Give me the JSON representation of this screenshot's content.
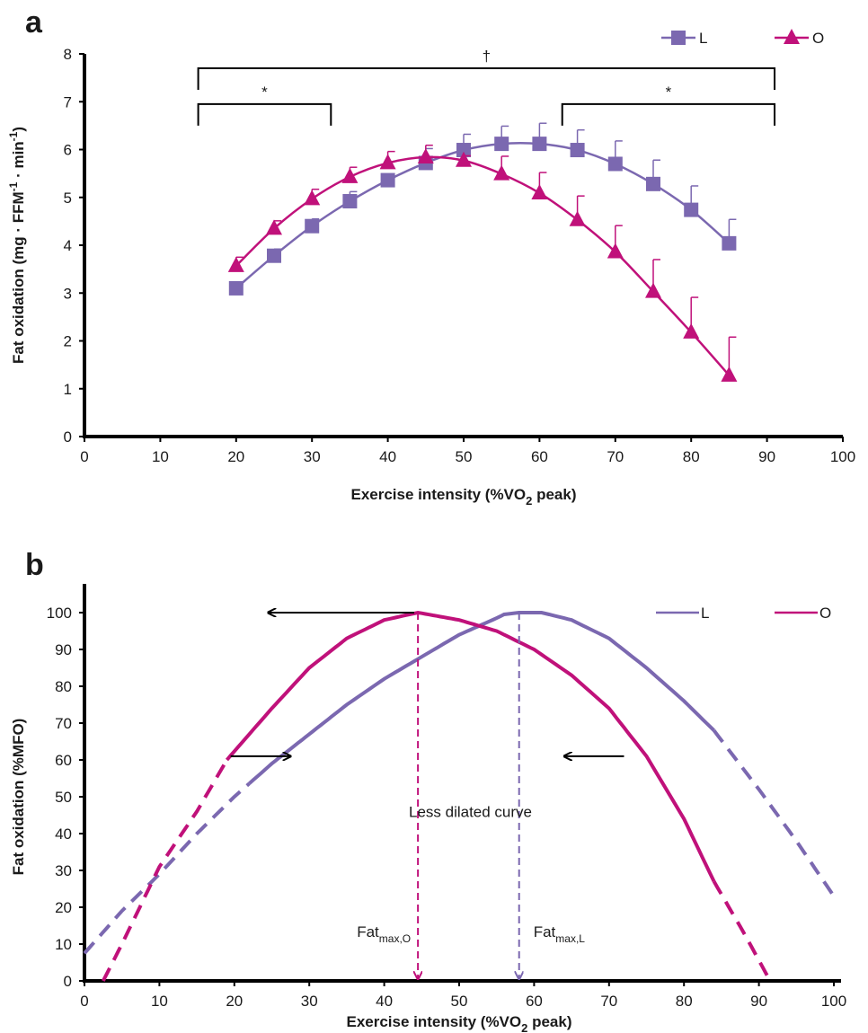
{
  "colors": {
    "L": "#7b68b0",
    "O": "#c0117a",
    "axis": "#000000"
  },
  "chart_data": [
    {
      "panel": "a",
      "type": "line",
      "xlabel": "Exercise intensity (%VO2 peak)",
      "xlabel_parts": {
        "before": "Exercise intensity (%VO",
        "sub": "2",
        "after": " peak)"
      },
      "ylabel_parts": [
        "Fat oxidation (mg · FFM",
        "-1",
        " · min",
        "-1",
        ")"
      ],
      "xlim": [
        0,
        100
      ],
      "ylim": [
        0,
        8
      ],
      "xticks": [
        0,
        10,
        20,
        30,
        40,
        50,
        60,
        70,
        80,
        90,
        100
      ],
      "yticks": [
        0,
        1,
        2,
        3,
        4,
        5,
        6,
        7,
        8
      ],
      "legend": [
        "L",
        "O"
      ],
      "legend_position": "top-right",
      "series": [
        {
          "name": "L",
          "marker": "square",
          "color": "#7b68b0",
          "x": [
            20,
            25,
            30,
            35,
            40,
            45,
            50,
            55,
            60,
            65,
            70,
            75,
            80,
            85
          ],
          "y": [
            3.1,
            3.78,
            4.4,
            4.92,
            5.36,
            5.72,
            5.99,
            6.12,
            6.12,
            5.99,
            5.7,
            5.28,
            4.74,
            4.04
          ],
          "err": [
            0.08,
            0.14,
            0.15,
            0.2,
            0.05,
            0.3,
            0.33,
            0.37,
            0.43,
            0.42,
            0.48,
            0.5,
            0.5,
            0.5
          ]
        },
        {
          "name": "O",
          "marker": "triangle",
          "color": "#c0117a",
          "x": [
            20,
            25,
            30,
            35,
            40,
            45,
            50,
            55,
            60,
            65,
            70,
            75,
            80,
            85
          ],
          "y": [
            3.57,
            4.35,
            4.97,
            5.43,
            5.72,
            5.84,
            5.77,
            5.49,
            5.09,
            4.53,
            3.86,
            3.03,
            2.18,
            1.28
          ],
          "err": [
            0.18,
            0.16,
            0.2,
            0.2,
            0.24,
            0.25,
            0.1,
            0.37,
            0.43,
            0.5,
            0.55,
            0.67,
            0.73,
            0.8
          ]
        }
      ],
      "annotations": [
        {
          "label": "†",
          "bracket_x": [
            15,
            91
          ],
          "level": 7.7
        },
        {
          "label": "*",
          "bracket_x": [
            15,
            32.5
          ],
          "level": 6.95
        },
        {
          "label": "*",
          "bracket_x": [
            63,
            91
          ],
          "level": 6.95
        }
      ]
    },
    {
      "panel": "b",
      "type": "line",
      "xlabel": "Exercise intensity (%VO2 peak)",
      "xlabel_parts": {
        "before": "Exercise intensity (%VO",
        "sub": "2",
        "after": " peak)"
      },
      "ylabel": "Fat oxidation (%MFO)",
      "xlim": [
        0,
        100
      ],
      "ylim": [
        0,
        100
      ],
      "xticks": [
        0,
        10,
        20,
        30,
        40,
        50,
        60,
        70,
        80,
        90,
        100
      ],
      "yticks": [
        0,
        10,
        20,
        30,
        40,
        50,
        60,
        70,
        80,
        90,
        100
      ],
      "legend": [
        "L",
        "O"
      ],
      "legend_position": "top-right",
      "series": [
        {
          "name": "L",
          "color": "#7b68b0",
          "peak_x": 58,
          "plateau": [
            56,
            61
          ],
          "solid_range": [
            22,
            84
          ],
          "dashed_range": [
            0,
            100
          ],
          "points": [
            [
              0,
              7.5
            ],
            [
              5,
              19
            ],
            [
              10,
              29
            ],
            [
              15,
              40
            ],
            [
              20,
              50
            ],
            [
              25,
              59
            ],
            [
              30,
              67
            ],
            [
              35,
              75
            ],
            [
              40,
              82
            ],
            [
              45,
              88
            ],
            [
              50,
              94
            ],
            [
              55,
              98.5
            ],
            [
              56,
              99.5
            ],
            [
              58,
              100
            ],
            [
              61,
              100
            ],
            [
              65,
              98
            ],
            [
              70,
              93
            ],
            [
              75,
              85
            ],
            [
              80,
              76
            ],
            [
              84,
              68
            ],
            [
              90,
              52
            ],
            [
              95,
              38
            ],
            [
              100,
              23
            ]
          ]
        },
        {
          "name": "O",
          "color": "#c0117a",
          "peak_x": 44.5,
          "solid_range": [
            19,
            84
          ],
          "dashed_range": [
            2.5,
            91.5
          ],
          "points": [
            [
              2.5,
              0
            ],
            [
              5,
              10
            ],
            [
              10,
              31
            ],
            [
              15,
              46
            ],
            [
              19,
              60
            ],
            [
              25,
              74
            ],
            [
              30,
              85
            ],
            [
              35,
              93
            ],
            [
              40,
              98
            ],
            [
              44.5,
              100
            ],
            [
              50,
              98
            ],
            [
              55,
              95
            ],
            [
              60,
              90
            ],
            [
              65,
              83
            ],
            [
              70,
              74
            ],
            [
              75,
              61
            ],
            [
              80,
              44
            ],
            [
              84,
              27
            ],
            [
              88,
              13
            ],
            [
              91.5,
              0
            ]
          ]
        }
      ],
      "annotations": {
        "center_text": "Less dilated curve",
        "fatmax_O": {
          "base": "Fat",
          "sub": "max,O",
          "x": 44.5
        },
        "fatmax_L": {
          "base": "Fat",
          "sub": "max,L",
          "x": 58
        },
        "arrows": [
          {
            "from": [
              44,
              100
            ],
            "to": [
              24.5,
              100
            ]
          },
          {
            "from": [
              19.5,
              61
            ],
            "to": [
              27.5,
              61
            ]
          },
          {
            "from": [
              72,
              61
            ],
            "to": [
              64,
              61
            ]
          }
        ]
      }
    }
  ],
  "panels": {
    "a": "a",
    "b": "b"
  }
}
